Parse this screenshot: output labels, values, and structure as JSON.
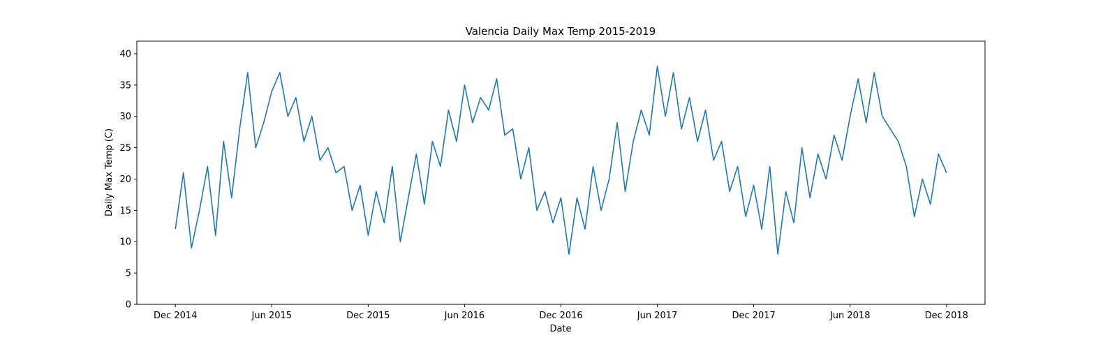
{
  "chart_data": {
    "type": "line",
    "title": "Valencia Daily Max Temp 2015-2019",
    "x_label": "Date",
    "y_label": "Daily Max Temp (C)",
    "x": [
      0,
      0.5,
      1,
      1.5,
      2,
      2.5,
      3,
      3.5,
      4,
      4.5,
      5,
      5.5,
      6,
      6.5,
      7,
      7.5,
      8,
      8.5,
      9,
      9.5,
      10,
      10.5,
      11,
      11.5,
      12,
      12.5,
      13,
      13.5,
      14,
      14.5,
      15,
      15.5,
      16,
      16.5,
      17,
      17.5,
      18,
      18.5,
      19,
      19.5,
      20,
      20.5,
      21,
      21.5,
      22,
      22.5,
      23,
      23.5,
      24,
      24.5,
      25,
      25.5,
      26,
      26.5,
      27,
      27.5,
      28,
      28.5,
      29,
      29.5,
      30,
      30.5,
      31,
      31.5,
      32,
      32.5,
      33,
      33.5,
      34,
      34.5,
      35,
      35.5,
      36,
      36.5,
      37,
      37.5,
      38,
      38.5,
      39,
      39.5,
      40,
      40.5,
      41,
      41.5,
      42,
      42.5,
      43,
      43.5,
      44,
      44.5,
      45,
      45.5,
      46,
      46.5,
      47,
      47.5,
      48
    ],
    "series": [
      {
        "name": "Daily Max Temp",
        "color": "#1f77b4",
        "values": [
          12,
          21,
          9,
          15,
          22,
          11,
          26,
          17,
          28,
          37,
          25,
          29,
          34,
          37,
          30,
          33,
          26,
          30,
          23,
          25,
          21,
          22,
          15,
          19,
          11,
          18,
          13,
          22,
          10,
          17,
          24,
          16,
          26,
          22,
          31,
          26,
          35,
          29,
          33,
          31,
          36,
          27,
          28,
          20,
          25,
          15,
          18,
          13,
          17,
          8,
          17,
          12,
          22,
          15,
          20,
          29,
          18,
          26,
          31,
          27,
          38,
          30,
          37,
          28,
          33,
          26,
          31,
          23,
          26,
          18,
          22,
          14,
          19,
          12,
          22,
          8,
          18,
          13,
          25,
          17,
          24,
          20,
          27,
          23,
          30,
          36,
          29,
          37,
          30,
          28,
          26,
          22,
          14,
          20,
          16,
          24,
          21
        ]
      }
    ],
    "xlim": [
      -2.4,
      50.4
    ],
    "xticks": [
      {
        "value": 0,
        "label": "Dec 2014"
      },
      {
        "value": 6,
        "label": "Jun 2015"
      },
      {
        "value": 12,
        "label": "Dec 2015"
      },
      {
        "value": 18,
        "label": "Jun 2016"
      },
      {
        "value": 24,
        "label": "Dec 2016"
      },
      {
        "value": 30,
        "label": "Jun 2017"
      },
      {
        "value": 36,
        "label": "Dec 2017"
      },
      {
        "value": 42,
        "label": "Jun 2018"
      },
      {
        "value": 48,
        "label": "Dec 2018"
      }
    ],
    "ylim": [
      0,
      42
    ],
    "yticks": [
      0,
      5,
      10,
      15,
      20,
      25,
      30,
      35,
      40
    ],
    "grid": false
  }
}
